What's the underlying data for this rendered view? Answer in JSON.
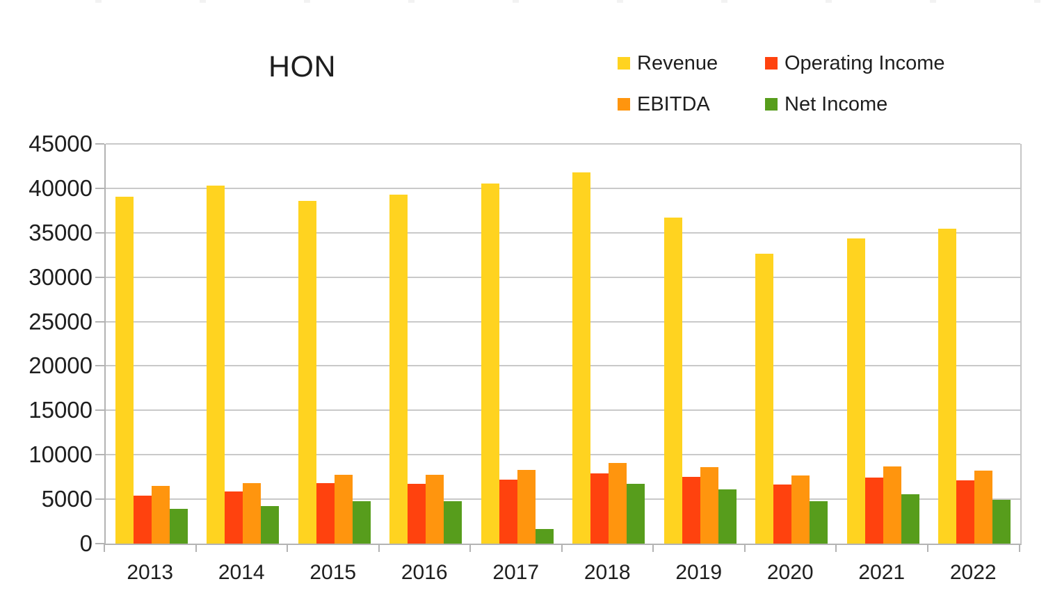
{
  "page": {
    "background": "#ffffff",
    "text_color": "#1e1e1e",
    "gridline_color": "#c9c9c9",
    "axis_color": "#b3b3b3"
  },
  "chart": {
    "title": "HON",
    "legend_items": [
      {
        "label": "Revenue",
        "color": "#FFD320"
      },
      {
        "label": "Operating Income",
        "color": "#FF420E"
      },
      {
        "label": "EBITDA",
        "color": "#FF950E"
      },
      {
        "label": "Net Income",
        "color": "#579D1C"
      }
    ]
  },
  "chart_data": {
    "type": "bar",
    "title": "HON",
    "xlabel": "",
    "ylabel": "",
    "categories": [
      "2013",
      "2014",
      "2015",
      "2016",
      "2017",
      "2018",
      "2019",
      "2020",
      "2021",
      "2022"
    ],
    "series": [
      {
        "name": "Revenue",
        "color": "#FFD320",
        "values": [
          39055,
          40306,
          38581,
          39302,
          40534,
          41802,
          36709,
          32637,
          34392,
          35466
        ]
      },
      {
        "name": "Operating Income",
        "color": "#FF420E",
        "values": [
          5417,
          5879,
          6786,
          6701,
          7205,
          7905,
          7509,
          6664,
          7474,
          7105
        ]
      },
      {
        "name": "EBITDA",
        "color": "#FF950E",
        "values": [
          6510,
          6807,
          7770,
          7761,
          8290,
          9065,
          8578,
          7655,
          8680,
          8243
        ]
      },
      {
        "name": "Net Income",
        "color": "#579D1C",
        "values": [
          3924,
          4239,
          4768,
          4809,
          1655,
          6765,
          6143,
          4779,
          5542,
          4966
        ]
      }
    ],
    "ylim": [
      0,
      45000
    ],
    "yticks": [
      0,
      5000,
      10000,
      15000,
      20000,
      25000,
      30000,
      35000,
      40000,
      45000
    ],
    "grid": true,
    "legend_position": "top-right",
    "legend_rows": 2,
    "legend_columns": 2
  }
}
